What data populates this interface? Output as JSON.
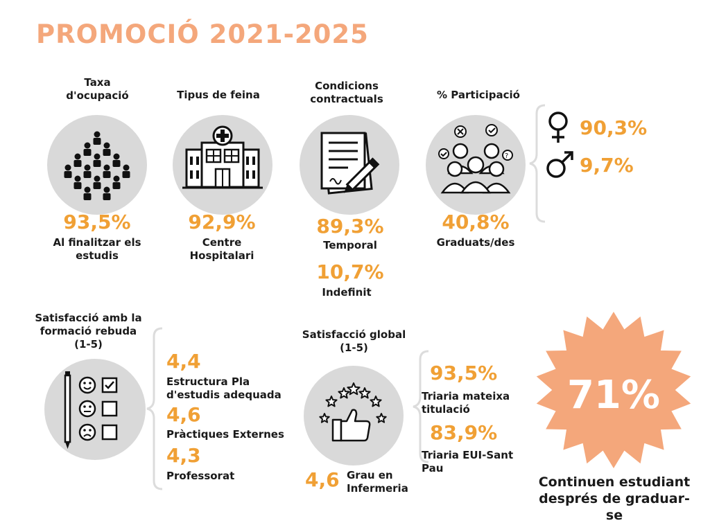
{
  "title": "PROMOCIÓ 2021-2025",
  "accent": "#f0a035",
  "title_color": "#f4a77b",
  "burst_color": "#f4a77b",
  "ocupacio": {
    "label": "Taxa d'ocupació",
    "value": "93,5%",
    "desc": "Al finalitzar els estudis",
    "icon": "people-crowd-icon"
  },
  "feina": {
    "label": "Tipus de feina",
    "value": "92,9%",
    "desc": "Centre Hospitalari",
    "icon": "hospital-icon"
  },
  "contracte": {
    "label": "Condicions contractuals",
    "temporal_value": "89,3%",
    "temporal_label": "Temporal",
    "indefinit_value": "10,7%",
    "indefinit_label": "Indefinit",
    "icon": "contract-pen-icon"
  },
  "participacio": {
    "label": "% Participació",
    "value": "40,8%",
    "desc": "Graduats/des",
    "female_value": "90,3%",
    "male_value": "9,7%",
    "icon": "group-feedback-icon"
  },
  "satisfaccio_formacio": {
    "label": "Satisfacció amb la formació rebuda (1-5)",
    "icon": "survey-faces-icon",
    "items": [
      {
        "value": "4,4",
        "label": "Estructura Pla d'estudis adequada"
      },
      {
        "value": "4,6",
        "label": "Pràctiques Externes"
      },
      {
        "value": "4,3",
        "label": "Professorat"
      }
    ]
  },
  "satisfaccio_global": {
    "label": "Satisfacció global (1-5)",
    "value": "4,6",
    "desc": "Grau en Infermeria",
    "icon": "thumbs-up-stars-icon",
    "items": [
      {
        "value": "93,5%",
        "label": "Triaria mateixa titulació"
      },
      {
        "value": "83,9%",
        "label": "Triaria EUI-Sant Pau"
      }
    ]
  },
  "continuen": {
    "value": "71%",
    "desc": "Continuen estudiant després de graduar-se"
  }
}
